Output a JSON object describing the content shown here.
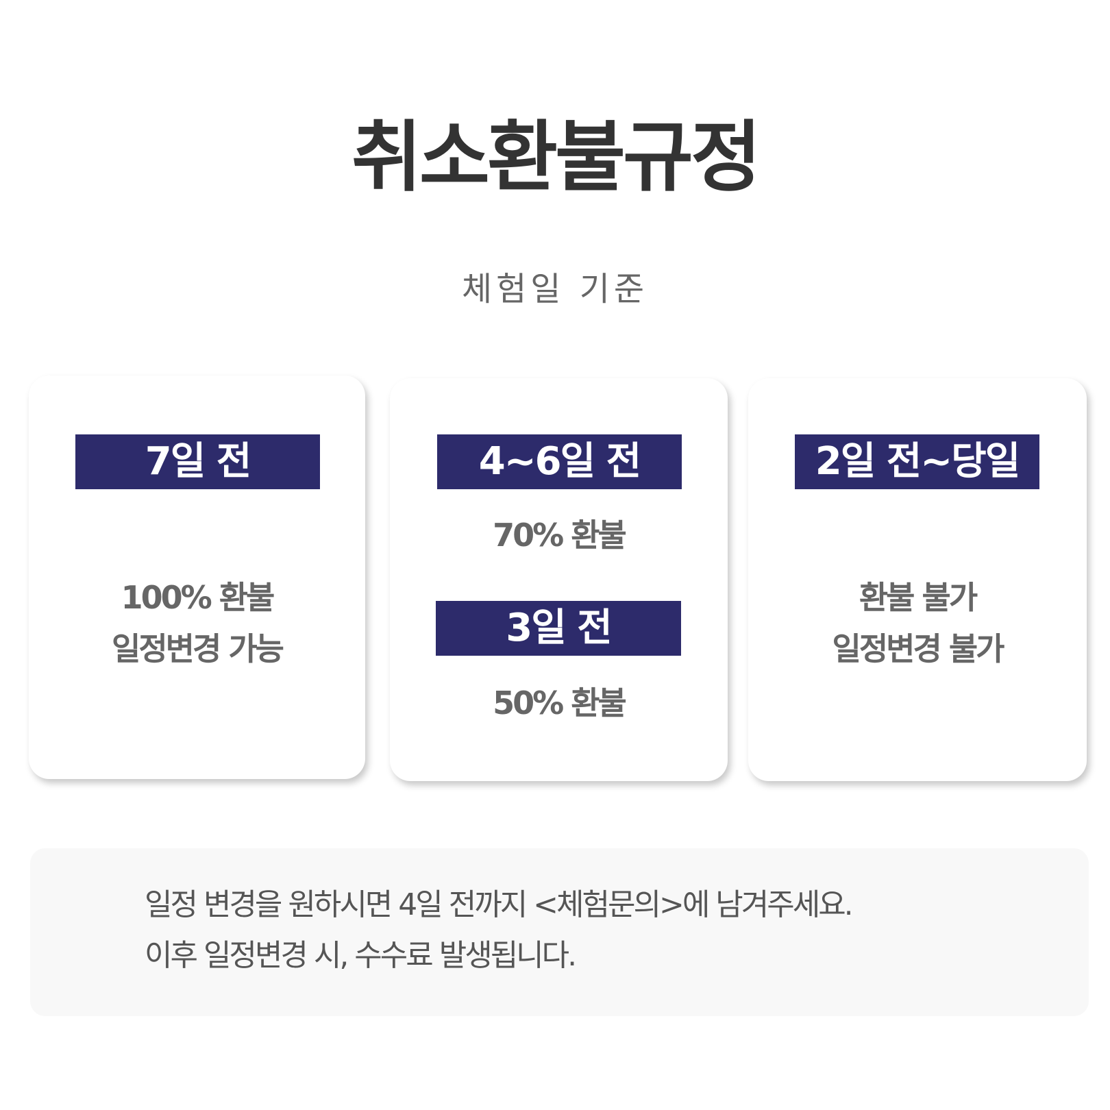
{
  "title": "취소환불규정",
  "subtitle": "체험일 기준",
  "cards": [
    {
      "label": "7일 전",
      "lines": [
        "100% 환불",
        "일정변경 가능"
      ]
    },
    {
      "label": "4~6일 전",
      "line": "70% 환불",
      "label2": "3일 전",
      "line2": "50% 환불"
    },
    {
      "label": "2일 전~당일",
      "lines": [
        "환불 불가",
        "일정변경 불가"
      ]
    }
  ],
  "note": {
    "lines": [
      "일정 변경을 원하시면 4일 전까지 <체험문의>에 남겨주세요.",
      "이후 일정변경 시, 수수료 발생됩니다."
    ]
  },
  "colors": {
    "label_bg": "#2d2b6b",
    "note_bg": "#f8f8f8"
  }
}
